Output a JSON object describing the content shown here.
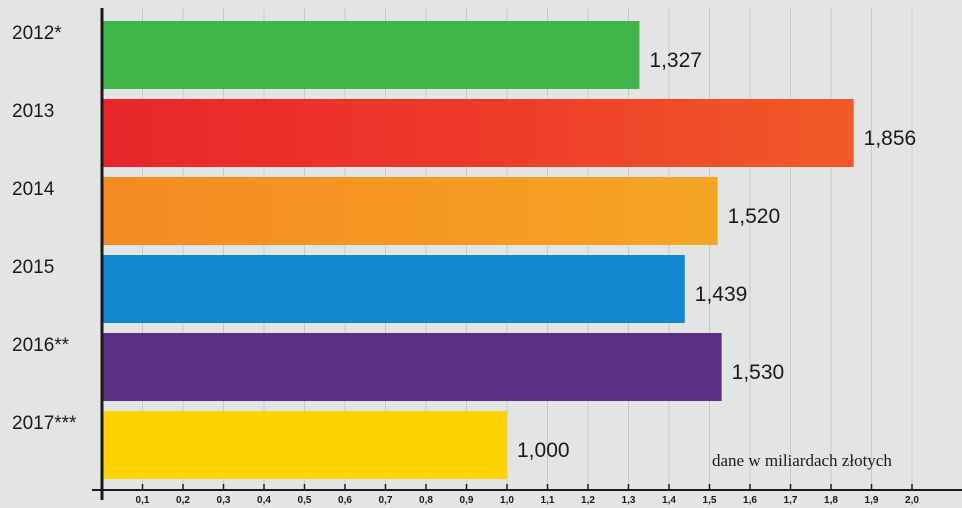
{
  "chart_data": {
    "type": "bar",
    "orientation": "horizontal",
    "categories": [
      "2012*",
      "2013",
      "2014",
      "2015",
      "2016**",
      "2017***"
    ],
    "values": [
      1.327,
      1.856,
      1.52,
      1.439,
      1.53,
      1.0
    ],
    "value_labels": [
      "1,327",
      "1,856",
      "1,520",
      "1,439",
      "1,530",
      "1,000"
    ],
    "colors": [
      "#3fb54a",
      "#e8262a",
      "#f49b22",
      "#1188cf",
      "#5c3184",
      "#fdd400"
    ],
    "xlim": [
      0,
      2.1
    ],
    "x_ticks": [
      0.1,
      0.2,
      0.3,
      0.4,
      0.5,
      0.6,
      0.7,
      0.8,
      0.9,
      1.0,
      1.1,
      1.2,
      1.3,
      1.4,
      1.5,
      1.6,
      1.7,
      1.8,
      1.9,
      2.0
    ],
    "x_tick_labels": [
      "0,1",
      "0,2",
      "0,3",
      "0,4",
      "0,5",
      "0,6",
      "0,7",
      "0,8",
      "0,9",
      "1,0",
      "1,1",
      "1,2",
      "1,3",
      "1,4",
      "1,5",
      "1,6",
      "1,7",
      "1,8",
      "1,9",
      "2,0"
    ],
    "grid": true,
    "note": "dane w miliardach złotych"
  }
}
